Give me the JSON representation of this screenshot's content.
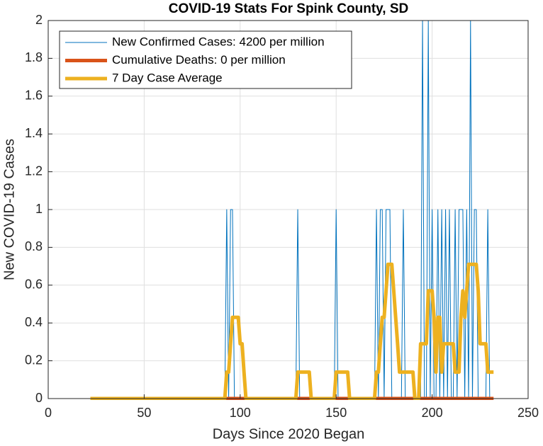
{
  "chart_data": {
    "type": "line",
    "title": "COVID-19 Stats For Spink County, SD",
    "xlabel": "Days Since 2020 Began",
    "ylabel": "New COVID-19 Cases",
    "xlim": [
      0,
      250
    ],
    "xticks": [
      0,
      50,
      100,
      150,
      200,
      250
    ],
    "ylim": [
      0,
      2
    ],
    "yticks": [
      0,
      0.2,
      0.4,
      0.6,
      0.8,
      1,
      1.2,
      1.4,
      1.6,
      1.8,
      2
    ],
    "grid": true,
    "legend": "upper left",
    "series": [
      {
        "name": "New Confirmed Cases: 4200 per million",
        "color": "#0072bd",
        "x": [
          22,
          92,
          93,
          94,
          95,
          96,
          97,
          129,
          130,
          131,
          149,
          150,
          151,
          170,
          171,
          172,
          173,
          174,
          175,
          176,
          177,
          178,
          179,
          184,
          185,
          186,
          194,
          195,
          196,
          197,
          198,
          199,
          200,
          201,
          202,
          203,
          204,
          205,
          206,
          207,
          208,
          209,
          210,
          211,
          212,
          213,
          214,
          215,
          216,
          217,
          218,
          219,
          220,
          221,
          222,
          223,
          224,
          228,
          229,
          230,
          232
        ],
        "values": [
          0,
          0,
          1,
          0,
          1,
          1,
          0,
          0,
          1,
          0,
          0,
          1,
          0,
          0,
          1,
          0,
          1,
          1,
          0,
          1,
          1,
          1,
          0,
          0,
          1,
          0,
          0,
          2,
          0,
          0,
          2,
          0,
          1,
          0,
          0,
          1,
          0,
          1,
          0,
          1,
          0,
          1,
          0,
          0,
          1,
          0,
          1,
          1,
          1,
          0,
          1,
          0,
          2,
          0,
          1,
          1,
          0,
          0,
          1,
          0,
          0
        ]
      },
      {
        "name": "Cumulative Deaths: 0 per million",
        "color": "#d95319",
        "x": [
          22,
          232
        ],
        "values": [
          0,
          0
        ]
      },
      {
        "name": "7 Day Case Average",
        "color": "#edb120",
        "x": [
          22,
          92,
          93,
          94,
          95,
          96,
          99,
          100,
          101,
          102,
          103,
          129,
          130,
          136,
          137,
          149,
          150,
          156,
          157,
          170,
          171,
          172,
          173,
          174,
          175,
          176,
          177,
          179,
          180,
          181,
          182,
          183,
          190,
          191,
          193,
          194,
          197,
          198,
          200,
          201,
          202,
          203,
          204,
          205,
          206,
          211,
          212,
          214,
          215,
          216,
          217,
          218,
          219,
          223,
          224,
          225,
          228,
          229,
          232
        ],
        "values": [
          0,
          0,
          0.14,
          0.14,
          0.29,
          0.43,
          0.43,
          0.29,
          0.29,
          0.14,
          0,
          0,
          0.14,
          0.14,
          0,
          0,
          0.14,
          0.14,
          0,
          0,
          0.14,
          0.14,
          0.29,
          0.43,
          0.43,
          0.57,
          0.71,
          0.71,
          0.57,
          0.43,
          0.29,
          0.14,
          0.14,
          0,
          0,
          0.29,
          0.29,
          0.57,
          0.57,
          0.43,
          0.14,
          0.43,
          0.43,
          0.14,
          0.29,
          0.29,
          0.14,
          0.14,
          0.43,
          0.57,
          0.43,
          0.57,
          0.71,
          0.71,
          0.57,
          0.29,
          0.29,
          0.14,
          0.14
        ]
      }
    ]
  }
}
